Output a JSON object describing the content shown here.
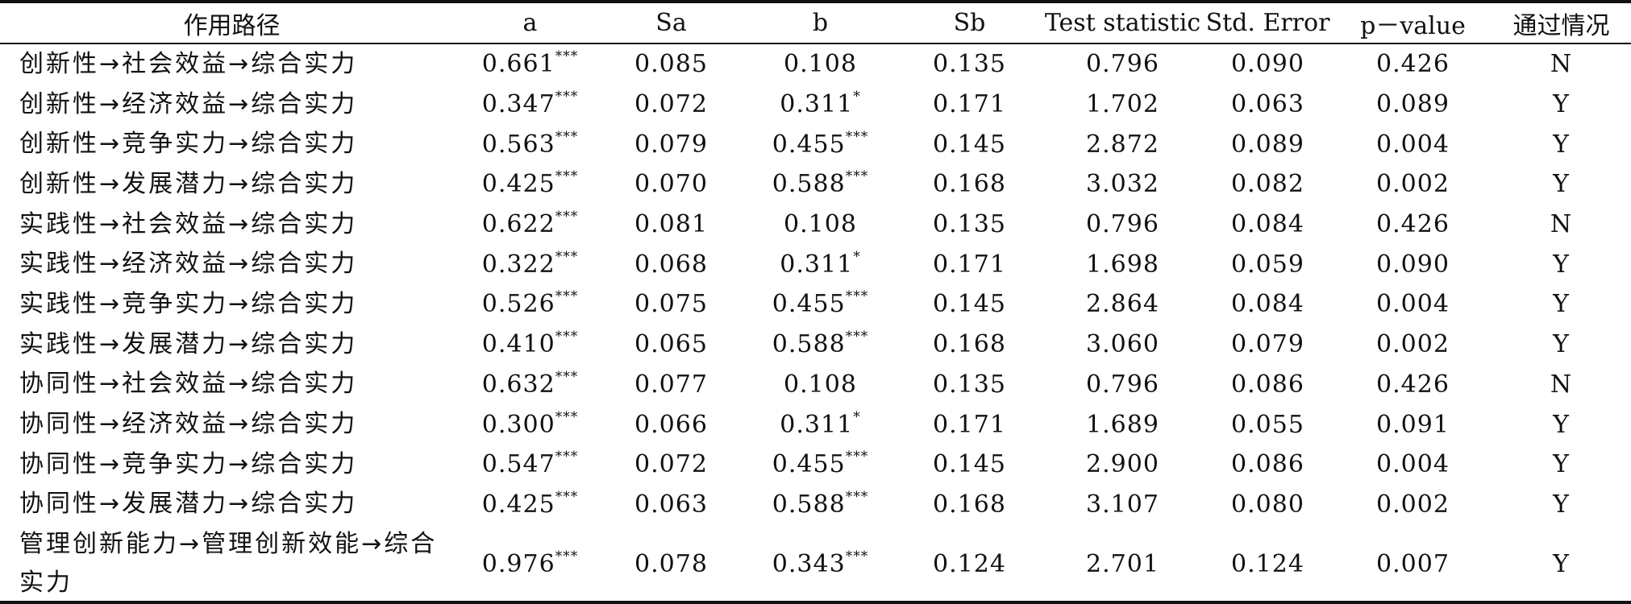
{
  "table": {
    "headers": [
      "作用路径",
      "a",
      "Sa",
      "b",
      "Sb",
      "Test statistic",
      "Std. Error",
      "p－value",
      "通过情况"
    ],
    "rows": [
      {
        "path": "创新性→社会效益→综合实力",
        "a": "0.661",
        "a_sig": "***",
        "sa": "0.085",
        "b": "0.108",
        "b_sig": "",
        "sb": "0.135",
        "test": "0.796",
        "se": "0.090",
        "p": "0.426",
        "pass": "N"
      },
      {
        "path": "创新性→经济效益→综合实力",
        "a": "0.347",
        "a_sig": "***",
        "sa": "0.072",
        "b": "0.311",
        "b_sig": "*",
        "sb": "0.171",
        "test": "1.702",
        "se": "0.063",
        "p": "0.089",
        "pass": "Y"
      },
      {
        "path": "创新性→竞争实力→综合实力",
        "a": "0.563",
        "a_sig": "***",
        "sa": "0.079",
        "b": "0.455",
        "b_sig": "***",
        "sb": "0.145",
        "test": "2.872",
        "se": "0.089",
        "p": "0.004",
        "pass": "Y"
      },
      {
        "path": "创新性→发展潜力→综合实力",
        "a": "0.425",
        "a_sig": "***",
        "sa": "0.070",
        "b": "0.588",
        "b_sig": "***",
        "sb": "0.168",
        "test": "3.032",
        "se": "0.082",
        "p": "0.002",
        "pass": "Y"
      },
      {
        "path": "实践性→社会效益→综合实力",
        "a": "0.622",
        "a_sig": "***",
        "sa": "0.081",
        "b": "0.108",
        "b_sig": "",
        "sb": "0.135",
        "test": "0.796",
        "se": "0.084",
        "p": "0.426",
        "pass": "N"
      },
      {
        "path": "实践性→经济效益→综合实力",
        "a": "0.322",
        "a_sig": "***",
        "sa": "0.068",
        "b": "0.311",
        "b_sig": "*",
        "sb": "0.171",
        "test": "1.698",
        "se": "0.059",
        "p": "0.090",
        "pass": "Y"
      },
      {
        "path": "实践性→竞争实力→综合实力",
        "a": "0.526",
        "a_sig": "***",
        "sa": "0.075",
        "b": "0.455",
        "b_sig": "***",
        "sb": "0.145",
        "test": "2.864",
        "se": "0.084",
        "p": "0.004",
        "pass": "Y"
      },
      {
        "path": "实践性→发展潜力→综合实力",
        "a": "0.410",
        "a_sig": "***",
        "sa": "0.065",
        "b": "0.588",
        "b_sig": "***",
        "sb": "0.168",
        "test": "3.060",
        "se": "0.079",
        "p": "0.002",
        "pass": "Y"
      },
      {
        "path": "协同性→社会效益→综合实力",
        "a": "0.632",
        "a_sig": "***",
        "sa": "0.077",
        "b": "0.108",
        "b_sig": "",
        "sb": "0.135",
        "test": "0.796",
        "se": "0.086",
        "p": "0.426",
        "pass": "N"
      },
      {
        "path": "协同性→经济效益→综合实力",
        "a": "0.300",
        "a_sig": "***",
        "sa": "0.066",
        "b": "0.311",
        "b_sig": "*",
        "sb": "0.171",
        "test": "1.689",
        "se": "0.055",
        "p": "0.091",
        "pass": "Y"
      },
      {
        "path": "协同性→竞争实力→综合实力",
        "a": "0.547",
        "a_sig": "***",
        "sa": "0.072",
        "b": "0.455",
        "b_sig": "***",
        "sb": "0.145",
        "test": "2.900",
        "se": "0.086",
        "p": "0.004",
        "pass": "Y"
      },
      {
        "path": "协同性→发展潜力→综合实力",
        "a": "0.425",
        "a_sig": "***",
        "sa": "0.063",
        "b": "0.588",
        "b_sig": "***",
        "sb": "0.168",
        "test": "3.107",
        "se": "0.080",
        "p": "0.002",
        "pass": "Y"
      },
      {
        "path": "管理创新能力→管理创新效能→综合实力",
        "a": "0.976",
        "a_sig": "***",
        "sa": "0.078",
        "b": "0.343",
        "b_sig": "***",
        "sb": "0.124",
        "test": "2.701",
        "se": "0.124",
        "p": "0.007",
        "pass": "Y"
      }
    ]
  }
}
